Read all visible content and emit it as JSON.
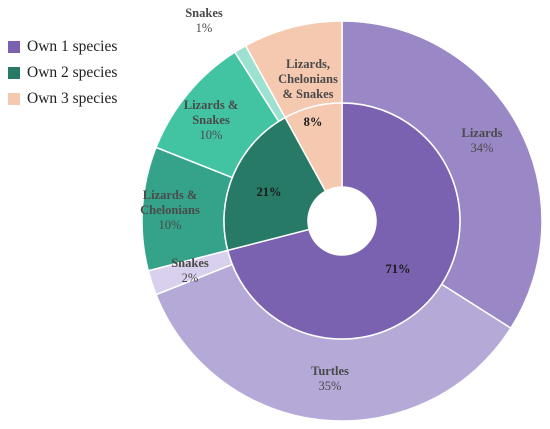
{
  "chart_data": {
    "type": "pie",
    "variant": "nested-donut",
    "title": "",
    "legend": {
      "placement": "top-left",
      "entries": [
        {
          "name": "Own 1 species",
          "color": "#7a62b0"
        },
        {
          "name": "Own 2 species",
          "color": "#267a66"
        },
        {
          "name": "Own 3 species",
          "color": "#f5c8b0"
        }
      ]
    },
    "inner_ring": [
      {
        "name": "Own 1 species",
        "value": 71,
        "label": "71%",
        "color": "#7a62b0"
      },
      {
        "name": "Own 2 species",
        "value": 21,
        "label": "21%",
        "color": "#267a66"
      },
      {
        "name": "Own 3 species",
        "value": 8,
        "label": "8%",
        "color": "#f5c8b0"
      }
    ],
    "outer_ring": [
      {
        "group": "Own 1 species",
        "name": "Lizards",
        "value": 34,
        "pct_label": "34%",
        "color": "#9a88c6"
      },
      {
        "group": "Own 1 species",
        "name": "Turtles",
        "value": 35,
        "pct_label": "35%",
        "color": "#b5a9d7"
      },
      {
        "group": "Own 1 species",
        "name": "Snakes",
        "value": 2,
        "pct_label": "2%",
        "color": "#d8d0ec"
      },
      {
        "group": "Own 2 species",
        "name": "Lizards & Chelonians",
        "value": 10,
        "pct_label": "10%",
        "color": "#34a38a"
      },
      {
        "group": "Own 2 species",
        "name": "Lizards & Snakes",
        "value": 10,
        "pct_label": "10%",
        "color": "#42c4a3"
      },
      {
        "group": "Own 2 species",
        "name": "Snakes",
        "value": 1,
        "pct_label": "1%",
        "color": "#9de2d0"
      },
      {
        "group": "Own 3 species",
        "name": "Lizards, Chelonians & Snakes",
        "value": 8,
        "pct_label": "8%",
        "color": "#f5c8b0"
      }
    ]
  }
}
